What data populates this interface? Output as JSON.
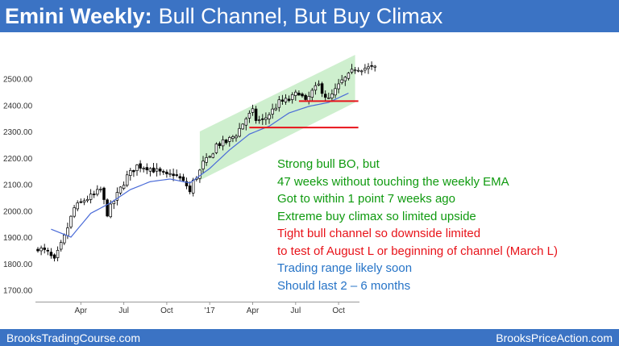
{
  "header": {
    "title_bold": "Emini Weekly:",
    "title_rest": "Bull Channel, But Buy Climax"
  },
  "footer": {
    "left": "BrooksTradingCourse.com",
    "right": "BrooksPriceAction.com"
  },
  "colors": {
    "banner": "#3b73c4",
    "channel_fill": "#c6ecc6",
    "ema": "#4a6bd8",
    "support": "#e8131a",
    "green_text": "#0f9a0f",
    "red_text": "#e8131a",
    "blue_text": "#2573c7"
  },
  "notes": [
    {
      "text": "Strong bull BO, but",
      "color": "#0f9a0f"
    },
    {
      "text": "47 weeks without touching the weekly EMA",
      "color": "#0f9a0f"
    },
    {
      "text": "Got to within 1 point 7 weeks ago",
      "color": "#0f9a0f"
    },
    {
      "text": "Extreme buy climax so limited upside",
      "color": "#0f9a0f"
    },
    {
      "text": "Tight bull channel so downside limited",
      "color": "#e8131a"
    },
    {
      "text": "to test of August L or beginning of channel (March L)",
      "color": "#e8131a"
    },
    {
      "text": "Trading range likely soon",
      "color": "#2573c7"
    },
    {
      "text": "Should last 2 – 6 months",
      "color": "#2573c7"
    }
  ],
  "chart_data": {
    "type": "candlestick",
    "title": "Emini Weekly: Bull Channel, But Buy Climax",
    "x_tick_labels": [
      "Apr",
      "Jul",
      "Oct",
      "'17",
      "Apr",
      "Jul",
      "Oct"
    ],
    "y_tick_labels": [
      "1700.00",
      "1800.00",
      "1900.00",
      "2000.00",
      "2100.00",
      "2200.00",
      "2300.00",
      "2400.00",
      "2500.00"
    ],
    "ylim": [
      1680,
      2580
    ],
    "y_axis_side": "left",
    "weeks": 102,
    "close_anchors": [
      [
        0,
        1860
      ],
      [
        3,
        1840
      ],
      [
        5,
        1810
      ],
      [
        8,
        1900
      ],
      [
        11,
        2010
      ],
      [
        14,
        2040
      ],
      [
        17,
        2060
      ],
      [
        19,
        2080
      ],
      [
        21,
        1990
      ],
      [
        24,
        2060
      ],
      [
        27,
        2130
      ],
      [
        30,
        2170
      ],
      [
        33,
        2165
      ],
      [
        36,
        2150
      ],
      [
        39,
        2130
      ],
      [
        41,
        2140
      ],
      [
        43,
        2120
      ],
      [
        45,
        2095
      ],
      [
        46,
        2070
      ],
      [
        47,
        2110
      ],
      [
        49,
        2150
      ],
      [
        50,
        2180
      ],
      [
        52,
        2200
      ],
      [
        54,
        2250
      ],
      [
        57,
        2260
      ],
      [
        60,
        2290
      ],
      [
        63,
        2350
      ],
      [
        65,
        2375
      ],
      [
        66,
        2345
      ],
      [
        68,
        2340
      ],
      [
        71,
        2380
      ],
      [
        73,
        2410
      ],
      [
        76,
        2420
      ],
      [
        79,
        2450
      ],
      [
        81,
        2410
      ],
      [
        83,
        2450
      ],
      [
        85,
        2475
      ],
      [
        87,
        2435
      ],
      [
        88,
        2420
      ],
      [
        90,
        2455
      ],
      [
        92,
        2490
      ],
      [
        94,
        2510
      ],
      [
        96,
        2540
      ]
    ],
    "channel": {
      "lower": [
        [
          49,
          2115
        ],
        [
          96,
          2410
        ]
      ],
      "upper": [
        [
          49,
          2300
        ],
        [
          96,
          2590
        ]
      ]
    },
    "ema_anchors": [
      [
        4,
        1930
      ],
      [
        10,
        1900
      ],
      [
        16,
        1990
      ],
      [
        22,
        2030
      ],
      [
        28,
        2080
      ],
      [
        34,
        2110
      ],
      [
        40,
        2120
      ],
      [
        46,
        2105
      ],
      [
        52,
        2160
      ],
      [
        58,
        2230
      ],
      [
        64,
        2290
      ],
      [
        70,
        2320
      ],
      [
        76,
        2370
      ],
      [
        82,
        2395
      ],
      [
        88,
        2410
      ],
      [
        94,
        2445
      ]
    ],
    "support_lines": [
      {
        "name": "August L",
        "price": 2415,
        "from_week": 79,
        "to_week": 96
      },
      {
        "name": "March L",
        "price": 2315,
        "from_week": 64,
        "to_week": 96
      }
    ]
  }
}
